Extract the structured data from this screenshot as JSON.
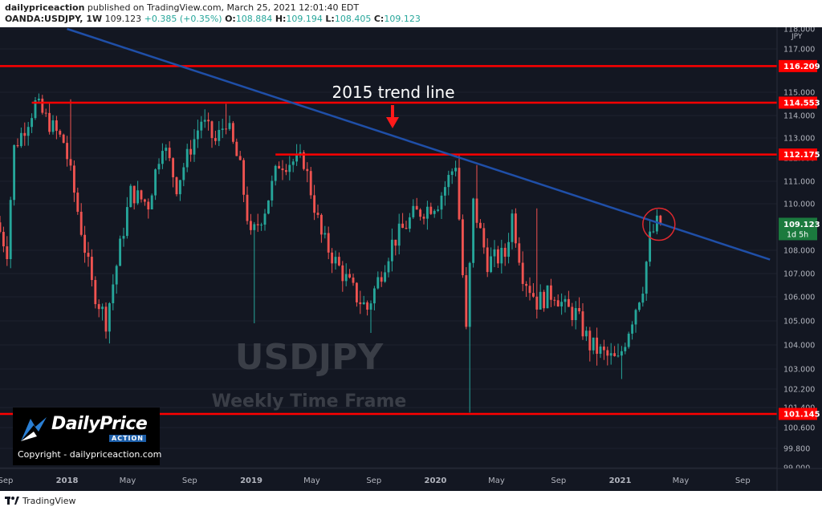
{
  "header": {
    "publisher": "dailypriceaction",
    "published_text": "published on TradingView.com, March 25, 2021 12:01:40 EDT",
    "symbol": "OANDA:USDJPY, 1W",
    "last": "109.123",
    "change": "+0.385 (+0.35%)",
    "o_label": "O:",
    "o_value": "108.884",
    "h_label": "H:",
    "h_value": "109.194",
    "l_label": "L:",
    "l_value": "108.405",
    "c_label": "C:",
    "c_value": "109.123"
  },
  "footer": {
    "brand": "TradingView"
  },
  "watermark": {
    "title": "USDJPY",
    "subtitle": "Weekly Time Frame",
    "brand_name": "DailyPrice",
    "brand_tag": "ACTION",
    "copyright": "Copyright - dailypriceaction.com"
  },
  "annotation": {
    "trend_label": "2015 trend line"
  },
  "colors": {
    "background": "#131722",
    "bull": "#26a69a",
    "bear": "#ef5350",
    "level": "#ff0000",
    "trend": "#1f4fa8",
    "axis_text": "#b2b5be"
  },
  "chart_data": {
    "type": "candlestick",
    "title": "",
    "currency": "JPY",
    "ylim": [
      99.0,
      118.0
    ],
    "xlim": [
      "2017-08-21",
      "2021-11-08"
    ],
    "x_ticks": [
      "Sep",
      "2018",
      "May",
      "Sep",
      "2019",
      "May",
      "Sep",
      "2020",
      "May",
      "Sep",
      "2021",
      "May",
      "Sep"
    ],
    "y_ticks": [
      "99.000",
      "99.800",
      "100.600",
      "101.400",
      "102.200",
      "103.000",
      "104.000",
      "105.000",
      "106.000",
      "107.000",
      "108.000",
      "110.000",
      "111.000",
      "112.000",
      "113.000",
      "114.000",
      "115.000",
      "117.000",
      "118.000"
    ],
    "levels": [
      {
        "value": 116.209,
        "label": "116.209",
        "start": "2017-08-21"
      },
      {
        "value": 114.553,
        "label": "114.553",
        "start": "2017-10-23"
      },
      {
        "value": 112.175,
        "label": "112.175",
        "start": "2019-02-18"
      },
      {
        "value": 101.145,
        "label": "101.145",
        "start": "2017-08-21"
      }
    ],
    "current_price": {
      "label": "109.123",
      "countdown": "1d 5h"
    },
    "trend_line": {
      "points": [
        [
          "2018-01-01",
          118.0
        ],
        [
          "2021-10-25",
          107.6
        ]
      ]
    },
    "anchors": [
      [
        "2017-08-21",
        109.2
      ],
      [
        "2017-09-11",
        108.0
      ],
      [
        "2017-09-25",
        112.5
      ],
      [
        "2017-11-06",
        114.5
      ],
      [
        "2018-01-01",
        112.8
      ],
      [
        "2018-01-22",
        110.5
      ],
      [
        "2018-02-26",
        106.5
      ],
      [
        "2018-03-26",
        105.0
      ],
      [
        "2018-05-14",
        110.5
      ],
      [
        "2018-06-18",
        110.0
      ],
      [
        "2018-07-16",
        112.8
      ],
      [
        "2018-08-13",
        110.8
      ],
      [
        "2018-10-01",
        113.8
      ],
      [
        "2018-10-29",
        112.8
      ],
      [
        "2018-11-19",
        113.8
      ],
      [
        "2018-12-17",
        111.5
      ],
      [
        "2019-01-07",
        108.5
      ],
      [
        "2019-02-04",
        109.8
      ],
      [
        "2019-03-04",
        111.8
      ],
      [
        "2019-04-22",
        111.9
      ],
      [
        "2019-05-27",
        108.6
      ],
      [
        "2019-06-24",
        107.5
      ],
      [
        "2019-08-05",
        106.0
      ],
      [
        "2019-08-26",
        105.5
      ],
      [
        "2019-10-14",
        108.3
      ],
      [
        "2019-11-25",
        109.5
      ],
      [
        "2020-01-13",
        110.1
      ],
      [
        "2020-02-17",
        111.8
      ],
      [
        "2020-03-09",
        104.5
      ],
      [
        "2020-03-23",
        110.0
      ],
      [
        "2020-04-20",
        107.5
      ],
      [
        "2020-05-25",
        107.8
      ],
      [
        "2020-06-08",
        109.5
      ],
      [
        "2020-06-29",
        107.0
      ],
      [
        "2020-07-27",
        105.8
      ],
      [
        "2020-08-31",
        106.2
      ],
      [
        "2020-09-21",
        105.5
      ],
      [
        "2020-10-12",
        105.3
      ],
      [
        "2020-11-09",
        104.0
      ],
      [
        "2020-12-14",
        103.5
      ],
      [
        "2021-01-04",
        103.3
      ],
      [
        "2021-01-25",
        104.7
      ],
      [
        "2021-02-22",
        106.5
      ],
      [
        "2021-03-08",
        108.5
      ],
      [
        "2021-03-22",
        109.12
      ]
    ],
    "spikes": [
      {
        "date": "2018-01-08",
        "high": 114.7
      },
      {
        "date": "2018-11-12",
        "high": 114.5
      },
      {
        "date": "2019-01-07",
        "low": 104.9
      },
      {
        "date": "2019-03-18",
        "high": 112.1
      },
      {
        "date": "2019-08-26",
        "low": 104.5
      },
      {
        "date": "2020-02-17",
        "high": 112.2
      },
      {
        "date": "2020-03-09",
        "low": 101.2
      },
      {
        "date": "2020-03-23",
        "high": 111.7
      },
      {
        "date": "2020-07-20",
        "high": 109.8
      },
      {
        "date": "2021-01-04",
        "low": 102.6
      }
    ]
  }
}
